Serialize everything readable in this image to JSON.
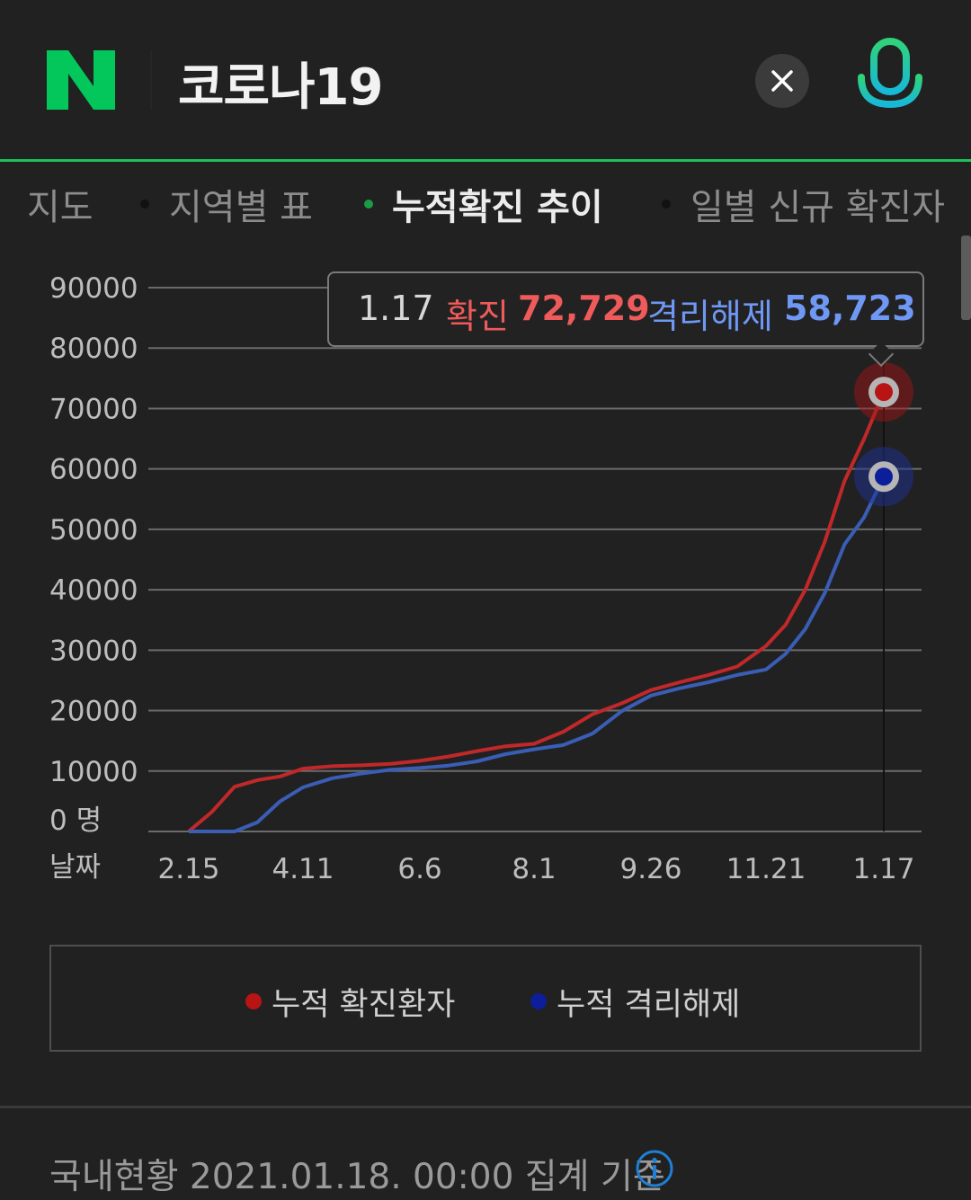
{
  "header": {
    "logo_letter": "N",
    "query": "코로나19",
    "brand_color": "#03c75a"
  },
  "tabs": [
    {
      "label": "지도",
      "active": false
    },
    {
      "label": "지역별 표",
      "active": false
    },
    {
      "label": "누적확진 추이",
      "active": true
    },
    {
      "label": "일별 신규 확진자",
      "active": false
    }
  ],
  "tooltip": {
    "date": "1.17",
    "confirmed_label": "확진",
    "confirmed_value": "72,729",
    "released_label": "격리해제",
    "released_value": "58,723"
  },
  "chart_data": {
    "type": "line",
    "ylim": [
      0,
      90000
    ],
    "y_ticks": [
      "90000",
      "80000",
      "70000",
      "60000",
      "50000",
      "40000",
      "30000",
      "20000",
      "10000",
      "0 명"
    ],
    "xlabel": "날짜",
    "x_ticks": [
      "2.15",
      "4.11",
      "6.6",
      "8.1",
      "9.26",
      "11.21",
      "1.17"
    ],
    "highlighted_x": "1.17",
    "x": [
      "2.15",
      "2.22",
      "3.1",
      "3.8",
      "3.15",
      "4.11",
      "4.25",
      "5.10",
      "5.25",
      "6.6",
      "6.20",
      "7.5",
      "7.20",
      "8.1",
      "8.15",
      "8.25",
      "9.5",
      "9.26",
      "10.10",
      "10.25",
      "11.10",
      "11.21",
      "12.1",
      "12.10",
      "12.20",
      "12.31",
      "1.8",
      "1.17"
    ],
    "series": [
      {
        "name": "누적 확진환자",
        "color": "#c0282a",
        "values": [
          30,
          3200,
          7400,
          8500,
          9100,
          10400,
          10800,
          10950,
          11200,
          11700,
          12400,
          13300,
          14100,
          14500,
          16500,
          19400,
          21200,
          23400,
          24700,
          25900,
          27300,
          30700,
          34200,
          40000,
          48000,
          58000,
          65000,
          72729
        ]
      },
      {
        "name": "누적 격리해제",
        "color": "#3a5db5",
        "values": [
          0,
          0,
          0,
          1500,
          5000,
          7300,
          8800,
          9600,
          10200,
          10500,
          10900,
          11600,
          12800,
          13600,
          14300,
          16200,
          19900,
          22500,
          23700,
          24700,
          25900,
          26800,
          29400,
          33500,
          39500,
          47500,
          52000,
          58723
        ]
      }
    ],
    "grid": true
  },
  "legend": {
    "confirmed_label": "누적 확진환자",
    "released_label": "누적 격리해제",
    "confirmed_color": "#b81414",
    "released_color": "#0d1e9a"
  },
  "status": {
    "text": "국내현황 2021.01.18. 00:00 집계 기준",
    "info_icon": "info-icon"
  }
}
